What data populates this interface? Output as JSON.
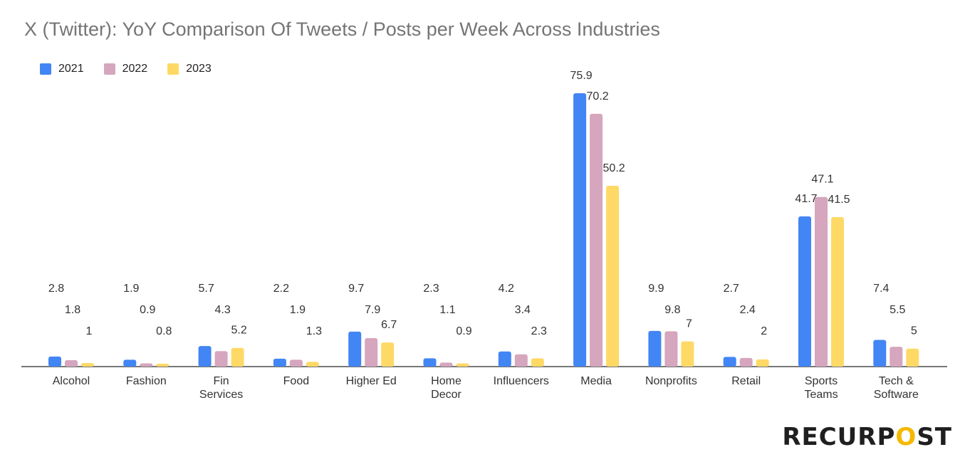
{
  "chart_data": {
    "type": "bar",
    "title": "X (Twitter): YoY Comparison Of Tweets / Posts per Week Across Industries",
    "xlabel": "",
    "ylabel": "",
    "categories": [
      [
        "Alcohol"
      ],
      [
        "Fashion"
      ],
      [
        "Fin",
        "Services"
      ],
      [
        "Food"
      ],
      [
        "Higher Ed"
      ],
      [
        "Home",
        "Decor"
      ],
      [
        "Influencers"
      ],
      [
        "Media"
      ],
      [
        "Nonprofits"
      ],
      [
        "Retail"
      ],
      [
        "Sports",
        "Teams"
      ],
      [
        "Tech &",
        "Software"
      ]
    ],
    "series": [
      {
        "name": "2021",
        "color": "#4285f4",
        "values": [
          2.8,
          1.9,
          5.7,
          2.2,
          9.7,
          2.3,
          4.2,
          75.9,
          9.9,
          2.7,
          41.7,
          7.4
        ]
      },
      {
        "name": "2022",
        "color": "#d5a6bd",
        "values": [
          1.8,
          0.9,
          4.3,
          1.9,
          7.9,
          1.1,
          3.4,
          70.2,
          9.8,
          2.4,
          47.1,
          5.5
        ]
      },
      {
        "name": "2023",
        "color": "#ffd966",
        "values": [
          1,
          0.8,
          5.2,
          1.3,
          6.7,
          0.9,
          2.3,
          50.2,
          7,
          2,
          41.5,
          5
        ]
      }
    ],
    "ylim": [
      0,
      80
    ],
    "grid": false,
    "legend_position": "top-left",
    "data_labels": true
  },
  "logo": {
    "text_pre": "RECURP",
    "text_o": "O",
    "text_post": "ST"
  }
}
